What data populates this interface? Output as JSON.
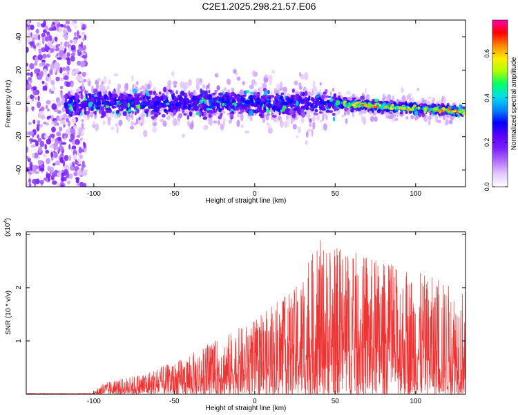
{
  "title": "C2E1.2025.298.21.57.E06",
  "chart_data": [
    {
      "type": "heatmap",
      "xlabel": "Height of straight line (km)",
      "ylabel": "Frequency (Hz)",
      "xlim": [
        -142,
        131
      ],
      "ylim": [
        -50,
        50
      ],
      "xticks": [
        -100,
        -50,
        0,
        50,
        100
      ],
      "xtick_labels": [
        "-100",
        "-50",
        "0",
        "50",
        "100"
      ],
      "yticks": [
        -40,
        -20,
        0,
        20,
        40
      ],
      "ytick_labels": [
        "-40",
        "-20",
        "0",
        "20",
        "40"
      ],
      "colorbar": {
        "label": "Normalized spectral amplitude",
        "range": [
          0,
          0.75
        ],
        "ticks": [
          0,
          0.2,
          0.4,
          0.6
        ],
        "tick_labels": [
          "0.0",
          "0.2",
          "0.4",
          "0.6"
        ],
        "colors": [
          "#ffffff",
          "#e4c8ff",
          "#b070ff",
          "#7a1fff",
          "#5a00ff",
          "#0000ff",
          "#0088ff",
          "#00ddee",
          "#00ff66",
          "#aaff00",
          "#ffee00",
          "#ff8800",
          "#ff0000",
          "#ff00aa"
        ]
      },
      "bands": [
        {
          "x": [
            -142,
            -105
          ],
          "center": 0,
          "spread": 50,
          "level": 0.12
        },
        {
          "x": [
            -120,
            -100
          ],
          "center": 0,
          "spread": 8,
          "level": 0.3
        },
        {
          "x": [
            -100,
            50
          ],
          "center": 0,
          "spread": 15,
          "level": 0.28
        },
        {
          "x": [
            50,
            131
          ],
          "center_start": 0,
          "center_end": -5,
          "spread": 5,
          "level": 0.45
        }
      ]
    },
    {
      "type": "line",
      "xlabel": "Height of straight line (km)",
      "ylabel": "SNR (10 * v/v)",
      "y_multiplier": "(x10",
      "y_multiplier_exp": "4",
      "y_multiplier_close": ")",
      "xlim": [
        -142,
        131
      ],
      "ylim": [
        0,
        3.05
      ],
      "xticks": [
        -100,
        -50,
        0,
        50,
        100
      ],
      "xtick_labels": [
        "-100",
        "-50",
        "0",
        "50",
        "100"
      ],
      "yticks": [
        1,
        2,
        3
      ],
      "ytick_labels": [
        "1",
        "2",
        "3"
      ],
      "color": "#ee3333",
      "envelope": [
        {
          "x": -142,
          "y": 0.01
        },
        {
          "x": -100,
          "y": 0.03
        },
        {
          "x": -95,
          "y": 0.2
        },
        {
          "x": -75,
          "y": 0.35
        },
        {
          "x": -50,
          "y": 0.6
        },
        {
          "x": -25,
          "y": 1.0
        },
        {
          "x": 0,
          "y": 1.4
        },
        {
          "x": 25,
          "y": 2.0
        },
        {
          "x": 40,
          "y": 2.9
        },
        {
          "x": 60,
          "y": 2.7
        },
        {
          "x": 90,
          "y": 2.4
        },
        {
          "x": 131,
          "y": 2.0
        }
      ]
    }
  ]
}
